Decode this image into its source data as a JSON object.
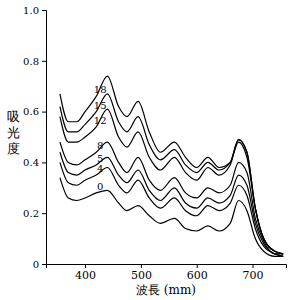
{
  "chart_data": {
    "type": "line",
    "xlabel": "波長 (mm)",
    "ylabel": "吸光度",
    "x": [
      355,
      370,
      385,
      400,
      420,
      440,
      460,
      475,
      495,
      515,
      535,
      560,
      580,
      600,
      620,
      640,
      660,
      675,
      690,
      705,
      720,
      740,
      755
    ],
    "series": [
      {
        "name": "18",
        "color": "#000000",
        "values": [
          0.67,
          0.56,
          0.56,
          0.6,
          0.66,
          0.74,
          0.62,
          0.58,
          0.64,
          0.52,
          0.44,
          0.48,
          0.42,
          0.38,
          0.42,
          0.38,
          0.4,
          0.48,
          0.42,
          0.22,
          0.1,
          0.05,
          0.04
        ]
      },
      {
        "name": "15",
        "color": "#000000",
        "values": [
          0.62,
          0.52,
          0.52,
          0.55,
          0.6,
          0.67,
          0.56,
          0.52,
          0.58,
          0.47,
          0.41,
          0.45,
          0.39,
          0.36,
          0.4,
          0.37,
          0.4,
          0.49,
          0.44,
          0.22,
          0.1,
          0.05,
          0.04
        ]
      },
      {
        "name": "12",
        "color": "#000000",
        "values": [
          0.58,
          0.48,
          0.48,
          0.5,
          0.54,
          0.61,
          0.5,
          0.46,
          0.52,
          0.42,
          0.37,
          0.42,
          0.36,
          0.33,
          0.38,
          0.35,
          0.39,
          0.49,
          0.44,
          0.22,
          0.1,
          0.05,
          0.04
        ]
      },
      {
        "name": "8",
        "color": "#000000",
        "values": [
          0.48,
          0.4,
          0.39,
          0.41,
          0.44,
          0.48,
          0.4,
          0.36,
          0.42,
          0.33,
          0.29,
          0.34,
          0.28,
          0.26,
          0.3,
          0.28,
          0.31,
          0.4,
          0.36,
          0.18,
          0.09,
          0.04,
          0.04
        ]
      },
      {
        "name": "5",
        "color": "#000000",
        "values": [
          0.44,
          0.36,
          0.35,
          0.37,
          0.39,
          0.42,
          0.35,
          0.32,
          0.37,
          0.29,
          0.25,
          0.3,
          0.24,
          0.22,
          0.26,
          0.24,
          0.27,
          0.35,
          0.31,
          0.16,
          0.08,
          0.04,
          0.03
        ]
      },
      {
        "name": "4",
        "color": "#000000",
        "values": [
          0.4,
          0.32,
          0.31,
          0.33,
          0.35,
          0.38,
          0.31,
          0.28,
          0.33,
          0.26,
          0.22,
          0.26,
          0.21,
          0.19,
          0.23,
          0.21,
          0.24,
          0.31,
          0.27,
          0.14,
          0.07,
          0.04,
          0.03
        ]
      },
      {
        "name": "0",
        "color": "#000000",
        "values": [
          0.34,
          0.26,
          0.25,
          0.26,
          0.28,
          0.29,
          0.24,
          0.21,
          0.23,
          0.19,
          0.16,
          0.18,
          0.14,
          0.13,
          0.15,
          0.13,
          0.16,
          0.25,
          0.21,
          0.1,
          0.05,
          0.03,
          0.03
        ]
      }
    ],
    "xlim": [
      330,
      760
    ],
    "xticks": [
      400,
      500,
      600,
      700
    ],
    "ylim": [
      0,
      1
    ],
    "yticks": [
      0,
      0.2,
      0.4,
      0.6,
      0.8,
      {
        "value": 1,
        "label": "1.0"
      }
    ],
    "grid": false
  }
}
